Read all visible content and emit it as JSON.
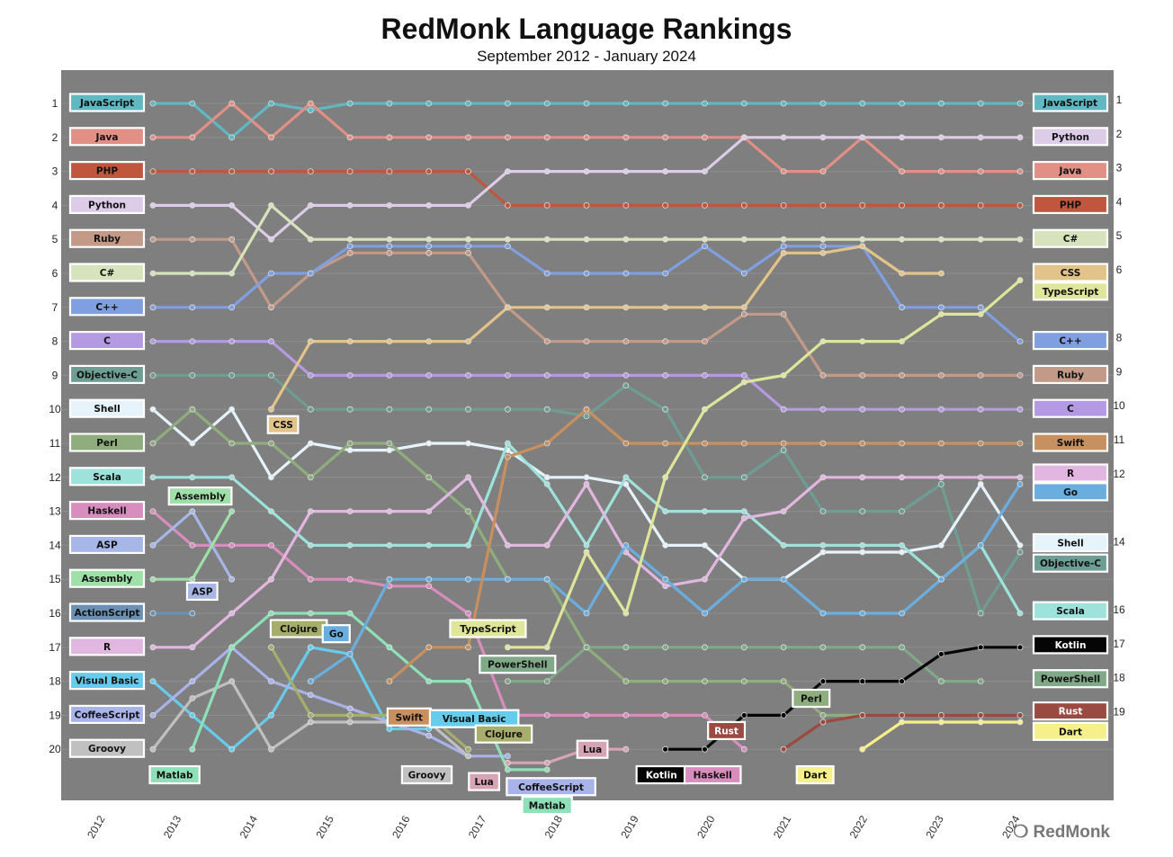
{
  "title": "RedMonk Language Rankings",
  "subtitle": "September 2012 - January 2024",
  "logo_text": "RedMonk",
  "chart_data": {
    "type": "line",
    "title": "RedMonk Language Rankings",
    "subtitle": "September 2012 - January 2024",
    "y_axis": "rank (1 at top, 20 at bottom)",
    "ylim": [
      1,
      20
    ],
    "x_ticks": [
      "2012",
      "2013",
      "2014",
      "2015",
      "2016",
      "2017",
      "2018",
      "2019",
      "2020",
      "2021",
      "2022",
      "2023",
      "2024"
    ],
    "rank_ticks_left": [
      1,
      2,
      3,
      4,
      5,
      6,
      7,
      8,
      9,
      10,
      11,
      12,
      13,
      14,
      15,
      16,
      17,
      18,
      19,
      20
    ],
    "rank_ticks_right": [
      1,
      2,
      3,
      4,
      5,
      6,
      8,
      9,
      10,
      11,
      12,
      14,
      16,
      17,
      18,
      19
    ],
    "periods": [
      "2012-09",
      "2013-01",
      "2013-06",
      "2014-01",
      "2014-06",
      "2015-01",
      "2015-06",
      "2016-01",
      "2016-06",
      "2017-01",
      "2017-06",
      "2018-01",
      "2018-06",
      "2019-01",
      "2019-06",
      "2020-01",
      "2020-06",
      "2021-01",
      "2021-06",
      "2022-01",
      "2022-06",
      "2023-01",
      "2024-01"
    ],
    "series": [
      {
        "name": "JavaScript",
        "color": "#5fb8c2",
        "start": 0,
        "ranks": [
          1,
          1,
          2,
          1,
          1.2,
          1,
          1,
          1,
          1,
          1,
          1,
          1,
          1,
          1,
          1,
          1,
          1,
          1,
          1,
          1,
          1,
          1,
          1
        ],
        "endLabel": "JavaScript"
      },
      {
        "name": "Java",
        "color": "#e28f86",
        "start": 0,
        "ranks": [
          2,
          2,
          1,
          2,
          1,
          2,
          2,
          2,
          2,
          2,
          2,
          2,
          2,
          2,
          2,
          2,
          3,
          3,
          2,
          3,
          3,
          3,
          3
        ],
        "endLabel": "Java"
      },
      {
        "name": "PHP",
        "color": "#c0563e",
        "start": 0,
        "ranks": [
          3,
          3,
          3,
          3,
          3,
          3,
          3,
          3,
          3,
          4,
          4,
          4,
          4,
          4,
          4,
          4,
          4,
          4,
          4,
          4,
          4,
          4,
          4
        ],
        "endLabel": "PHP"
      },
      {
        "name": "Python",
        "color": "#dccce8",
        "start": 0,
        "ranks": [
          4,
          4,
          4,
          5,
          4,
          4,
          4,
          4,
          4,
          3,
          3,
          3,
          3,
          3,
          3,
          2,
          2,
          2,
          2,
          2,
          2,
          2,
          2
        ],
        "endLabel": "Python"
      },
      {
        "name": "Ruby",
        "color": "#c39a88",
        "start": 0,
        "ranks": [
          5,
          5,
          5,
          7,
          6,
          5.4,
          5.4,
          5.4,
          5.4,
          7,
          8,
          8,
          8,
          8,
          8,
          7.2,
          7.2,
          9,
          9,
          9,
          9,
          9,
          9
        ],
        "endLabel": "Ruby"
      },
      {
        "name": "C#",
        "color": "#d7e3bc",
        "start": 0,
        "ranks": [
          6,
          6,
          6,
          4,
          5,
          5,
          5,
          5,
          5,
          5,
          5,
          5,
          5,
          5,
          5,
          5,
          5,
          5,
          5,
          5,
          5,
          5,
          5
        ],
        "endLabel": "C#"
      },
      {
        "name": "C++",
        "color": "#7f9fe0",
        "start": 0,
        "ranks": [
          7,
          7,
          7,
          6,
          6,
          5.2,
          5.2,
          5.2,
          5.2,
          5.2,
          6,
          6,
          6,
          6,
          5.2,
          6,
          5.2,
          5.2,
          5.2,
          7,
          7,
          7,
          8
        ],
        "endLabel": "C++"
      },
      {
        "name": "C",
        "color": "#b49ae3",
        "start": 0,
        "ranks": [
          8,
          8,
          8,
          8,
          9,
          9,
          9,
          9,
          9,
          9,
          9,
          9,
          9,
          9,
          9,
          9,
          10,
          10,
          10,
          10,
          10,
          10,
          10
        ],
        "endLabel": "C"
      },
      {
        "name": "Objective-C",
        "color": "#6e9e93",
        "start": 0,
        "ranks": [
          9,
          9,
          9,
          9,
          10,
          10,
          10,
          10,
          10,
          10,
          10,
          10.2,
          9.3,
          10,
          12,
          12,
          11.2,
          13,
          13,
          13,
          12.2,
          16,
          14.2
        ],
        "endLabel": "Objective-C"
      },
      {
        "name": "Shell",
        "color": "#e6f3fb",
        "start": 0,
        "ranks": [
          10,
          11,
          10,
          12,
          11,
          11.2,
          11.2,
          11,
          11,
          11.2,
          12,
          12,
          12.2,
          14,
          14,
          15,
          15,
          14.2,
          14.2,
          14.2,
          14,
          12.2,
          14
        ],
        "endLabel": "Shell"
      },
      {
        "name": "Perl",
        "color": "#8fae7d",
        "start": 0,
        "ranks": [
          11,
          10,
          11,
          11,
          12,
          11,
          11,
          12,
          13,
          15,
          15,
          17,
          18,
          18,
          18,
          18,
          18,
          19,
          19,
          19,
          19,
          19,
          19
        ],
        "endLabel": null
      },
      {
        "name": "Scala",
        "color": "#9de3dc",
        "start": 0,
        "ranks": [
          12,
          12,
          12,
          13,
          14,
          14,
          14,
          14,
          14,
          11,
          12.2,
          14,
          12,
          13,
          13,
          13,
          14,
          14,
          14,
          14,
          15,
          14,
          16
        ],
        "endLabel": "Scala"
      },
      {
        "name": "Haskell",
        "color": "#d98dbf",
        "start": 0,
        "ranks": [
          13,
          14,
          14,
          14,
          15,
          15,
          15.2,
          15.2,
          16,
          19,
          19,
          19,
          19,
          19,
          19,
          20
        ],
        "endLabel": null
      },
      {
        "name": "ASP",
        "color": "#a6b6e6",
        "start": 0,
        "ranks": [
          14,
          13,
          15
        ],
        "endLabel": null
      },
      {
        "name": "Assembly",
        "color": "#9fe0a8",
        "start": 0,
        "ranks": [
          15,
          15,
          13
        ],
        "endLabel": null
      },
      {
        "name": "ActionScript",
        "color": "#6a91b3",
        "start": 0,
        "ranks": [
          16,
          16
        ],
        "endLabel": null
      },
      {
        "name": "R",
        "color": "#e1b6e0",
        "start": 0,
        "ranks": [
          17,
          17,
          16,
          15,
          13,
          13,
          13,
          13,
          12,
          14,
          14,
          12.2,
          14.2,
          15.2,
          15,
          13.2,
          13,
          12,
          12,
          12,
          12,
          12,
          12
        ],
        "endLabel": "R"
      },
      {
        "name": "Visual Basic",
        "color": "#66ccec",
        "start": 0,
        "ranks": [
          18,
          19,
          20,
          19,
          17,
          17.2,
          19.4,
          19.4,
          19
        ],
        "endLabel": null
      },
      {
        "name": "CoffeeScript",
        "color": "#a8b3ea",
        "start": 0,
        "ranks": [
          19,
          18,
          17,
          18,
          18.4,
          18.8,
          19.2,
          19.6,
          20.2,
          20.2
        ],
        "endLabel": null
      },
      {
        "name": "Groovy",
        "color": "#c0c0c0",
        "start": 0,
        "ranks": [
          20,
          18.5,
          18,
          20,
          19.2,
          19.2,
          19.2,
          19.2,
          20.2
        ],
        "endLabel": null
      },
      {
        "name": "Matlab",
        "color": "#8ee0b8",
        "start": 1,
        "ranks": [
          20,
          17,
          16,
          16,
          16,
          17,
          18,
          18,
          20.6,
          20.6
        ],
        "endLabel": null
      },
      {
        "name": "CSS",
        "color": "#e2c48a",
        "start": 3,
        "ranks": [
          10,
          8,
          8,
          8,
          8,
          8,
          7,
          7,
          7,
          7,
          7,
          7,
          7,
          5.4,
          5.4,
          5.2,
          6,
          6
        ],
        "endLabel": "CSS"
      },
      {
        "name": "Clojure",
        "color": "#a7ad6a",
        "start": 3,
        "ranks": [
          17,
          19,
          19,
          19,
          19,
          20
        ],
        "endLabel": null
      },
      {
        "name": "Go",
        "color": "#6aaee0",
        "start": 4,
        "ranks": [
          18,
          17.2,
          15,
          15,
          15,
          15,
          15,
          16,
          14,
          15,
          16,
          15,
          15,
          16,
          16,
          16,
          15,
          14,
          12.2
        ],
        "endLabel": "Go"
      },
      {
        "name": "Swift",
        "color": "#c8905e",
        "start": 6,
        "ranks": [
          18,
          17,
          17,
          11.4,
          11,
          10,
          11,
          11,
          11,
          11,
          11,
          11,
          11,
          11,
          11,
          11,
          11
        ],
        "endLabel": "Swift"
      },
      {
        "name": "TypeScript",
        "color": "#dfe69a",
        "start": 9,
        "ranks": [
          17,
          17,
          14.2,
          16,
          12,
          10,
          9.2,
          9,
          8,
          8,
          8,
          7.2,
          7.2,
          6.2
        ],
        "endLabel": "TypeScript"
      },
      {
        "name": "PowerShell",
        "color": "#80a988",
        "start": 9,
        "ranks": [
          18,
          18,
          17,
          17,
          17,
          17,
          17,
          17,
          17,
          17,
          17,
          18,
          18
        ],
        "endLabel": "PowerShell"
      },
      {
        "name": "Lua",
        "color": "#d7a4b6",
        "start": 9,
        "ranks": [
          20.4,
          20.4,
          20,
          20
        ],
        "endLabel": null
      },
      {
        "name": "Kotlin",
        "color": "#050505",
        "start": 13,
        "ranks": [
          20,
          20,
          19,
          19,
          18,
          18,
          18,
          17.2,
          17,
          17
        ],
        "endLabel": "Kotlin"
      },
      {
        "name": "Rust",
        "color": "#9b4a41",
        "start": 16,
        "ranks": [
          20,
          19.2,
          19,
          19,
          19,
          19,
          19
        ],
        "endLabel": "Rust"
      },
      {
        "name": "Dart",
        "color": "#f6f08a",
        "start": 18,
        "ranks": [
          20,
          19.2,
          19.2,
          19.2,
          19.2
        ],
        "endLabel": "Dart"
      }
    ],
    "left_labels": [
      {
        "text": "JavaScript",
        "rank": 1
      },
      {
        "text": "Java",
        "rank": 2
      },
      {
        "text": "PHP",
        "rank": 3
      },
      {
        "text": "Python",
        "rank": 4
      },
      {
        "text": "Ruby",
        "rank": 5
      },
      {
        "text": "C#",
        "rank": 6
      },
      {
        "text": "C++",
        "rank": 7
      },
      {
        "text": "C",
        "rank": 8
      },
      {
        "text": "Objective-C",
        "rank": 9
      },
      {
        "text": "Shell",
        "rank": 10
      },
      {
        "text": "Perl",
        "rank": 11
      },
      {
        "text": "Scala",
        "rank": 12
      },
      {
        "text": "Haskell",
        "rank": 13
      },
      {
        "text": "ASP",
        "rank": 14
      },
      {
        "text": "Assembly",
        "rank": 15
      },
      {
        "text": "ActionScript",
        "rank": 16
      },
      {
        "text": "R",
        "rank": 17
      },
      {
        "text": "Visual Basic",
        "rank": 18
      },
      {
        "text": "CoffeeScript",
        "rank": 19
      },
      {
        "text": "Groovy",
        "rank": 20
      }
    ],
    "right_labels": [
      {
        "text": "JavaScript",
        "rank": 1
      },
      {
        "text": "Python",
        "rank": 2
      },
      {
        "text": "Java",
        "rank": 3
      },
      {
        "text": "PHP",
        "rank": 4
      },
      {
        "text": "C#",
        "rank": 5
      },
      {
        "text": "CSS",
        "rank": 6
      },
      {
        "text": "TypeScript",
        "rank": 6.55
      },
      {
        "text": "C++",
        "rank": 8
      },
      {
        "text": "Ruby",
        "rank": 9
      },
      {
        "text": "C",
        "rank": 10
      },
      {
        "text": "Swift",
        "rank": 11
      },
      {
        "text": "R",
        "rank": 11.9
      },
      {
        "text": "Go",
        "rank": 12.45
      },
      {
        "text": "Shell",
        "rank": 13.95
      },
      {
        "text": "Objective-C",
        "rank": 14.55
      },
      {
        "text": "Scala",
        "rank": 15.95
      },
      {
        "text": "Kotlin",
        "rank": 16.95
      },
      {
        "text": "PowerShell",
        "rank": 17.95
      },
      {
        "text": "Rust",
        "rank": 18.9
      },
      {
        "text": "Dart",
        "rank": 19.5
      }
    ],
    "annotations": [
      {
        "text": "Assembly",
        "at": [
          1.2,
          12.55
        ],
        "series": "Assembly"
      },
      {
        "text": "ASP",
        "at": [
          1.25,
          15.35
        ],
        "series": "ASP"
      },
      {
        "text": "CSS",
        "at": [
          3.3,
          10.45
        ],
        "series": "CSS"
      },
      {
        "text": "Clojure",
        "at": [
          3.7,
          16.45
        ],
        "series": "Clojure"
      },
      {
        "text": "Go",
        "at": [
          4.65,
          16.6
        ],
        "series": "Go"
      },
      {
        "text": "Swift",
        "at": [
          6.5,
          19.05
        ],
        "series": "Swift"
      },
      {
        "text": "Groovy",
        "at": [
          6.95,
          20.75
        ],
        "series": "Groovy"
      },
      {
        "text": "Visual Basic",
        "at": [
          8.15,
          19.1
        ],
        "series": "Visual Basic"
      },
      {
        "text": "TypeScript",
        "at": [
          8.5,
          16.45
        ],
        "series": "TypeScript"
      },
      {
        "text": "Lua",
        "at": [
          8.4,
          20.95
        ],
        "series": "Lua"
      },
      {
        "text": "PowerShell",
        "at": [
          9.25,
          17.5
        ],
        "series": "PowerShell"
      },
      {
        "text": "Clojure",
        "at": [
          8.9,
          19.55
        ],
        "series": "Clojure"
      },
      {
        "text": "CoffeeScript",
        "at": [
          10.1,
          21.1
        ],
        "series": "CoffeeScript"
      },
      {
        "text": "Matlab",
        "at": [
          10,
          21.65
        ],
        "series": "Matlab"
      },
      {
        "text": "Lua",
        "at": [
          11.15,
          20.0
        ],
        "series": "Lua"
      },
      {
        "text": "Kotlin",
        "at": [
          12.9,
          20.75
        ],
        "series": "Kotlin"
      },
      {
        "text": "Haskell",
        "at": [
          14.2,
          20.75
        ],
        "series": "Haskell"
      },
      {
        "text": "Rust",
        "at": [
          14.55,
          19.45
        ],
        "series": "Rust"
      },
      {
        "text": "Perl",
        "at": [
          16.7,
          18.5
        ],
        "series": "Perl"
      },
      {
        "text": "Dart",
        "at": [
          16.8,
          20.75
        ],
        "series": "Dart"
      },
      {
        "text": "Matlab",
        "at": [
          0.55,
          20.75
        ],
        "series": "Matlab"
      }
    ]
  }
}
